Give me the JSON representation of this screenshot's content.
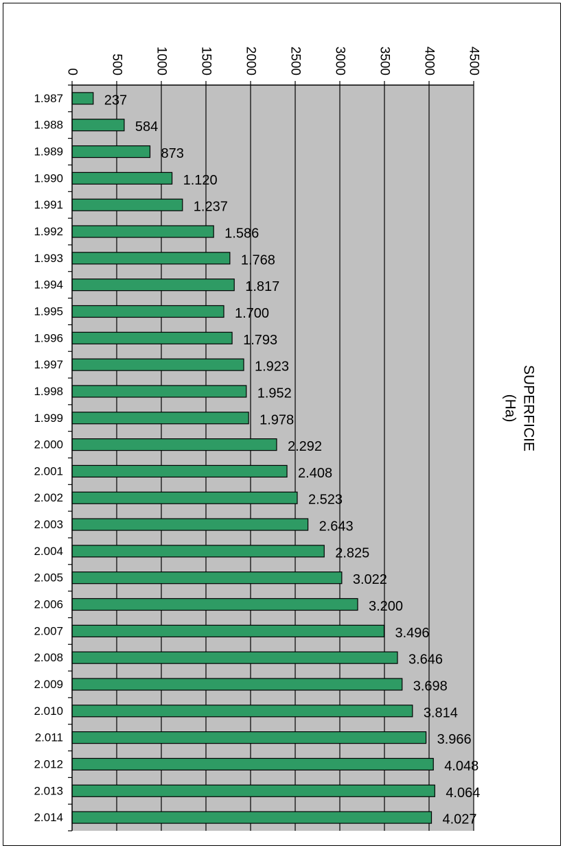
{
  "chart_data": {
    "type": "bar",
    "orientation": "horizontal",
    "categories": [
      "1.987",
      "1.988",
      "1.989",
      "1.990",
      "1.991",
      "1.992",
      "1.993",
      "1.994",
      "1.995",
      "1.996",
      "1.997",
      "1.998",
      "1.999",
      "2.000",
      "2.001",
      "2.002",
      "2.003",
      "2.004",
      "2.005",
      "2.006",
      "2.007",
      "2.008",
      "2.009",
      "2.010",
      "2.011",
      "2.012",
      "2.013",
      "2.014"
    ],
    "values": [
      237,
      584,
      873,
      1120,
      1237,
      1586,
      1768,
      1817,
      1700,
      1793,
      1923,
      1952,
      1978,
      2292,
      2408,
      2523,
      2643,
      2825,
      3022,
      3200,
      3496,
      3646,
      3698,
      3814,
      3966,
      4048,
      4064,
      4027
    ],
    "value_labels": [
      "237",
      "584",
      "873",
      "1.120",
      "1.237",
      "1.586",
      "1.768",
      "1.817",
      "1.700",
      "1.793",
      "1.923",
      "1.952",
      "1.978",
      "2.292",
      "2.408",
      "2.523",
      "2.643",
      "2.825",
      "3.022",
      "3.200",
      "3.496",
      "3.646",
      "3.698",
      "3.814",
      "3.966",
      "4.048",
      "4.064",
      "4.027"
    ],
    "value_axis": {
      "range": [
        0,
        4500
      ],
      "ticks": [
        0,
        500,
        1000,
        1500,
        2000,
        2500,
        3000,
        3500,
        4000,
        4500
      ],
      "tick_labels": [
        "0",
        "500",
        "1000",
        "1500",
        "2000",
        "2500",
        "3000",
        "3500",
        "4000",
        "4500"
      ],
      "tick_label_rotation": "90deg"
    },
    "value_axis_title_line1": "SUPERFICIE",
    "value_axis_title_line2": "(Ha)",
    "title": "",
    "grid": true,
    "legend": "none",
    "colors": {
      "bar_fill": "#2e9b64",
      "bar_stroke": "#000000",
      "plot_background": "#c0c0c0",
      "gridline": "#000000"
    }
  }
}
